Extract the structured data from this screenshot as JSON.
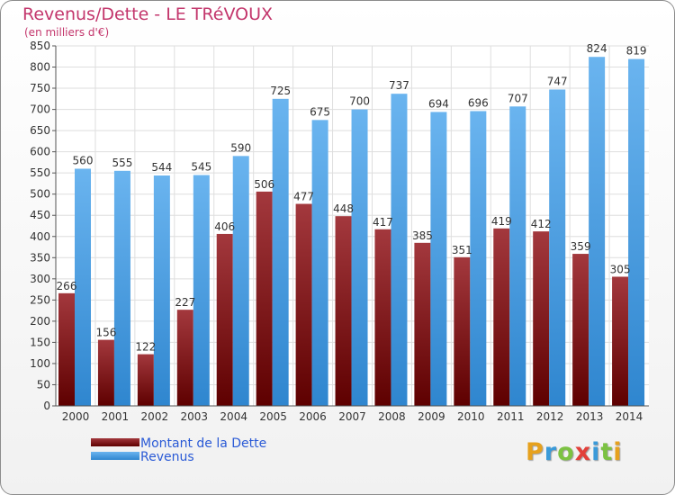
{
  "header": {
    "title": "Revenus/Dette - LE TRéVOUX",
    "subtitle": "(en milliers d'€)"
  },
  "colors": {
    "dette_top": "#a3383d",
    "dette_bottom": "#5e0000",
    "revenus_top": "#6ab4ef",
    "revenus_bottom": "#2f86cf",
    "title": "#c3366c",
    "legend_text": "#2a5ad6"
  },
  "chart_data": {
    "type": "bar",
    "title": "Revenus/Dette - LE TRéVOUX",
    "subtitle": "(en milliers d'€)",
    "xlabel": "",
    "ylabel": "",
    "ylim": [
      0,
      850
    ],
    "yticks": [
      0,
      50,
      100,
      150,
      200,
      250,
      300,
      350,
      400,
      450,
      500,
      550,
      600,
      650,
      700,
      750,
      800,
      850
    ],
    "grid": true,
    "legend_position": "bottom-left",
    "categories": [
      "2000",
      "2001",
      "2002",
      "2003",
      "2004",
      "2005",
      "2006",
      "2007",
      "2008",
      "2009",
      "2010",
      "2011",
      "2012",
      "2013",
      "2014"
    ],
    "series": [
      {
        "name": "Montant de la Dette",
        "values": [
          266,
          156,
          122,
          227,
          406,
          506,
          477,
          448,
          417,
          385,
          351,
          419,
          412,
          359,
          305
        ]
      },
      {
        "name": "Revenus",
        "values": [
          560,
          555,
          544,
          545,
          590,
          725,
          675,
          700,
          737,
          694,
          696,
          707,
          747,
          824,
          819
        ]
      }
    ]
  },
  "legend": {
    "dette_label": "Montant de la Dette",
    "revenus_label": "Revenus"
  },
  "logo": {
    "letters": [
      "P",
      "r",
      "o",
      "x",
      "i",
      "t",
      "i"
    ],
    "letter_colors": [
      "#e6a11e",
      "#3a9ad9",
      "#7cc242",
      "#e2403a",
      "#3a9ad9",
      "#7cc242",
      "#e6a11e"
    ]
  }
}
